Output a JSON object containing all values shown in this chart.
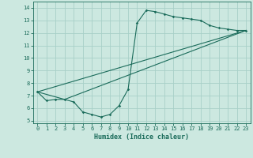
{
  "bg_color": "#cce8e0",
  "grid_color": "#a8d0c8",
  "line_color": "#1a6b5a",
  "xlabel": "Humidex (Indice chaleur)",
  "xlim": [
    -0.5,
    23.5
  ],
  "ylim": [
    4.8,
    14.5
  ],
  "xticks": [
    0,
    1,
    2,
    3,
    4,
    5,
    6,
    7,
    8,
    9,
    10,
    11,
    12,
    13,
    14,
    15,
    16,
    17,
    18,
    19,
    20,
    21,
    22,
    23
  ],
  "yticks": [
    5,
    6,
    7,
    8,
    9,
    10,
    11,
    12,
    13,
    14
  ],
  "line1_x": [
    0,
    1,
    2,
    3,
    4,
    5,
    6,
    7,
    8,
    9,
    10,
    11,
    12,
    13,
    14,
    15,
    16,
    17,
    18,
    19,
    20,
    21,
    22,
    23
  ],
  "line1_y": [
    7.3,
    6.6,
    6.7,
    6.7,
    6.5,
    5.7,
    5.5,
    5.3,
    5.5,
    6.2,
    7.5,
    12.8,
    13.8,
    13.7,
    13.5,
    13.3,
    13.2,
    13.1,
    13.0,
    12.6,
    12.4,
    12.3,
    12.2,
    12.2
  ],
  "line2_x": [
    0,
    3,
    23
  ],
  "line2_y": [
    7.3,
    6.7,
    12.2
  ],
  "line3_x": [
    0,
    23
  ],
  "line3_y": [
    7.3,
    12.2
  ],
  "tick_fontsize": 5.0,
  "xlabel_fontsize": 6.0
}
